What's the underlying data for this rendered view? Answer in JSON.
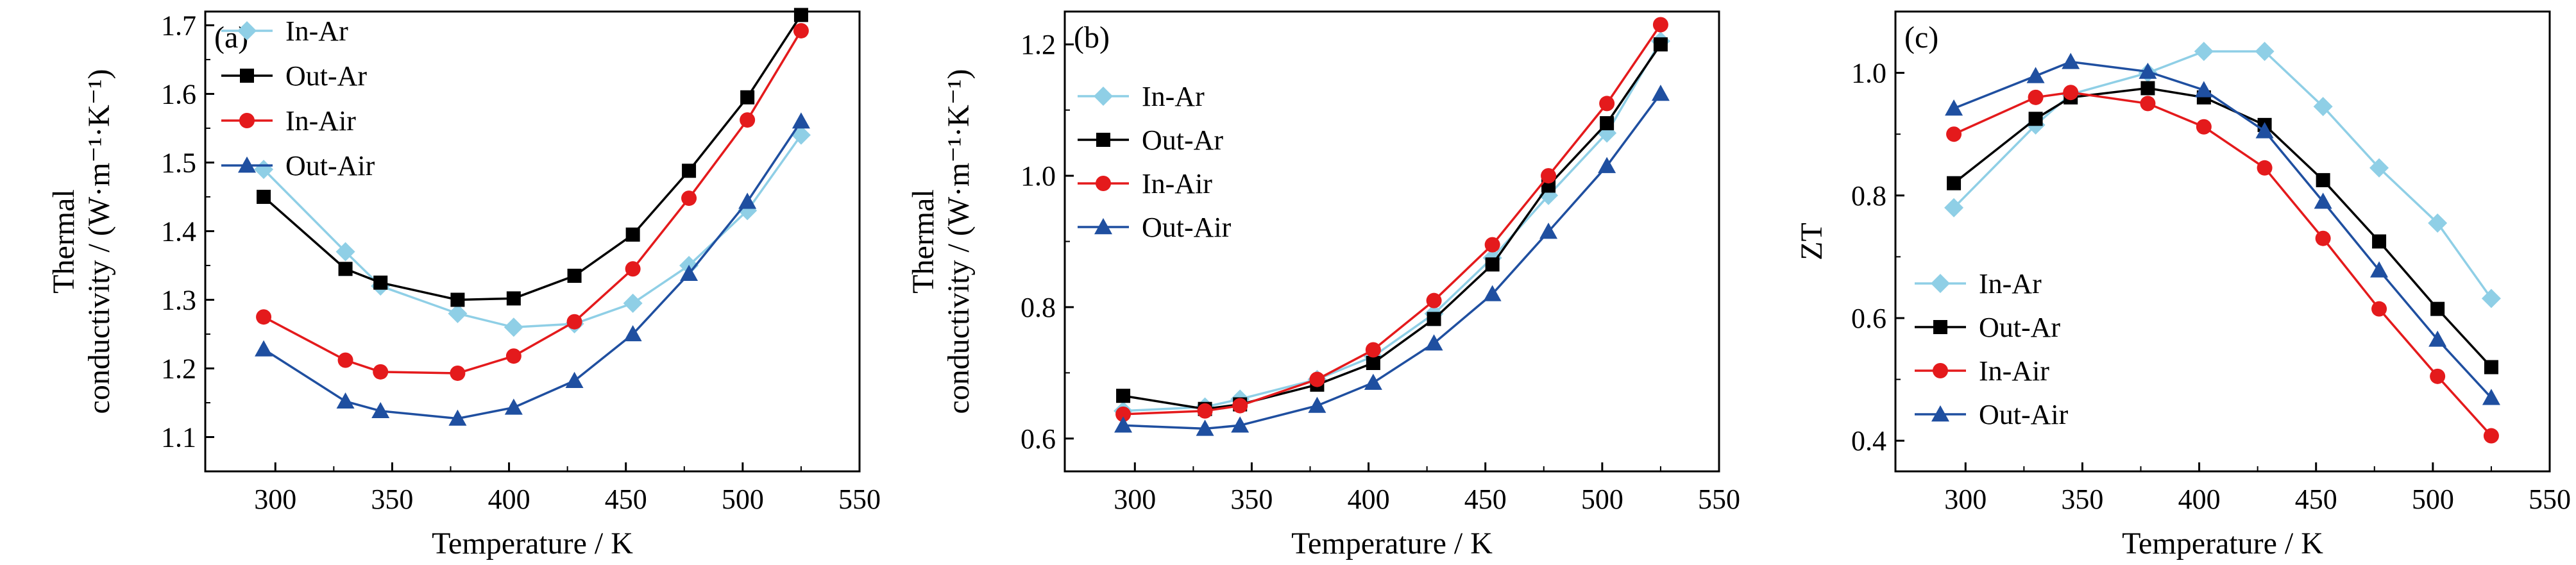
{
  "chart_data": [
    {
      "type": "line",
      "panel_label": "(a)",
      "xlabel": "Temperature / K",
      "ylabel_line1": "Thermal",
      "ylabel_line2": "conductivity / (W·m⁻¹·K⁻¹)",
      "xlim": [
        270,
        550
      ],
      "ylim": [
        1.05,
        1.72
      ],
      "xticks": [
        300,
        350,
        400,
        450,
        500,
        550
      ],
      "yticks": [
        1.1,
        1.2,
        1.3,
        1.4,
        1.5,
        1.6,
        1.7
      ],
      "ytick_decimals": 1,
      "legend_position": "top-left",
      "x": [
        295,
        330,
        345,
        378,
        402,
        428,
        453,
        477,
        502,
        525
      ],
      "series": [
        {
          "name": "In-Ar",
          "color": "#8fcfe6",
          "marker": "diamond",
          "values": [
            1.49,
            1.37,
            1.32,
            1.28,
            1.26,
            1.265,
            1.295,
            1.35,
            1.43,
            1.54
          ]
        },
        {
          "name": "Out-Ar",
          "color": "#000000",
          "marker": "square",
          "values": [
            1.45,
            1.345,
            1.325,
            1.3,
            1.302,
            1.335,
            1.395,
            1.488,
            1.595,
            1.715
          ]
        },
        {
          "name": "In-Air",
          "color": "#e41a1c",
          "marker": "circle",
          "values": [
            1.275,
            1.212,
            1.195,
            1.193,
            1.218,
            1.268,
            1.345,
            1.448,
            1.562,
            1.692
          ]
        },
        {
          "name": "Out-Air",
          "color": "#1f4fa0",
          "marker": "triangle",
          "values": [
            1.228,
            1.152,
            1.138,
            1.127,
            1.143,
            1.182,
            1.25,
            1.338,
            1.443,
            1.56
          ]
        }
      ]
    },
    {
      "type": "line",
      "panel_label": "(b)",
      "xlabel": "Temperature / K",
      "ylabel_line1": "Thermal",
      "ylabel_line2": "conductivity / (W·m⁻¹·K⁻¹)",
      "xlim": [
        270,
        550
      ],
      "ylim": [
        0.55,
        1.25
      ],
      "xticks": [
        300,
        350,
        400,
        450,
        500,
        550
      ],
      "yticks": [
        0.6,
        0.8,
        1.0,
        1.2
      ],
      "ytick_decimals": 1,
      "legend_position": "top-left",
      "x": [
        295,
        330,
        345,
        378,
        402,
        428,
        453,
        477,
        502,
        525
      ],
      "series": [
        {
          "name": "In-Ar",
          "color": "#8fcfe6",
          "marker": "diamond",
          "values": [
            0.642,
            0.648,
            0.66,
            0.69,
            0.725,
            0.79,
            0.875,
            0.97,
            1.065,
            1.205
          ]
        },
        {
          "name": "Out-Ar",
          "color": "#000000",
          "marker": "square",
          "values": [
            0.665,
            0.645,
            0.652,
            0.682,
            0.715,
            0.782,
            0.865,
            0.985,
            1.08,
            1.2
          ]
        },
        {
          "name": "In-Air",
          "color": "#e41a1c",
          "marker": "circle",
          "values": [
            0.637,
            0.642,
            0.65,
            0.69,
            0.735,
            0.81,
            0.895,
            1.0,
            1.11,
            1.23
          ]
        },
        {
          "name": "Out-Air",
          "color": "#1f4fa0",
          "marker": "triangle",
          "values": [
            0.62,
            0.615,
            0.62,
            0.65,
            0.685,
            0.745,
            0.82,
            0.915,
            1.015,
            1.125
          ]
        }
      ]
    },
    {
      "type": "line",
      "panel_label": "(c)",
      "xlabel": "Temperature / K",
      "ylabel": "ZT",
      "xlim": [
        270,
        550
      ],
      "ylim": [
        0.35,
        1.1
      ],
      "xticks": [
        300,
        350,
        400,
        450,
        500,
        550
      ],
      "yticks": [
        0.4,
        0.6,
        0.8,
        1.0
      ],
      "ytick_decimals": 1,
      "legend_position": "bottom-left",
      "x": [
        295,
        330,
        345,
        378,
        402,
        428,
        453,
        477,
        502,
        525
      ],
      "series": [
        {
          "name": "In-Ar",
          "color": "#8fcfe6",
          "marker": "diamond",
          "values": [
            0.78,
            0.915,
            0.965,
            1.0,
            1.035,
            1.035,
            0.945,
            0.845,
            0.755,
            0.632
          ]
        },
        {
          "name": "Out-Ar",
          "color": "#000000",
          "marker": "square",
          "values": [
            0.82,
            0.925,
            0.96,
            0.975,
            0.96,
            0.915,
            0.825,
            0.725,
            0.615,
            0.52
          ]
        },
        {
          "name": "In-Air",
          "color": "#e41a1c",
          "marker": "circle",
          "values": [
            0.9,
            0.96,
            0.968,
            0.95,
            0.912,
            0.845,
            0.73,
            0.615,
            0.505,
            0.408
          ]
        },
        {
          "name": "Out-Air",
          "color": "#1f4fa0",
          "marker": "triangle",
          "values": [
            0.942,
            0.995,
            1.018,
            1.002,
            0.972,
            0.905,
            0.79,
            0.678,
            0.565,
            0.47
          ]
        }
      ]
    }
  ]
}
